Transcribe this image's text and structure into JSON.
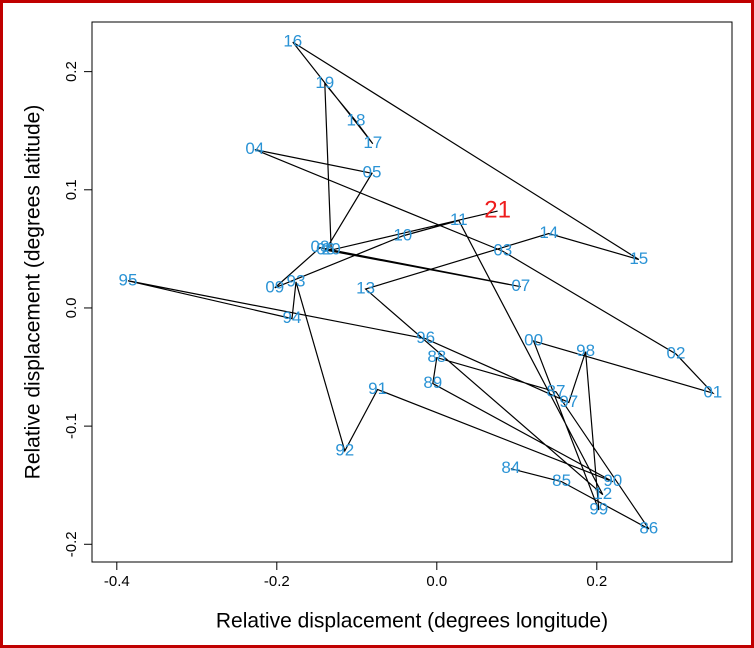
{
  "chart_data": {
    "type": "scatter",
    "x_label": "Relative displacement (degrees longitude)",
    "y_label": "Relative displacement (degrees latitude)",
    "xlim": [
      -0.431,
      0.369
    ],
    "ylim": [
      -0.215,
      0.242
    ],
    "xticks": [
      -0.4,
      -0.2,
      {
        "value": 0,
        "label": "0.0"
      },
      0.2
    ],
    "yticks": [
      -0.2,
      -0.1,
      {
        "value": 0,
        "label": "0.0"
      },
      0.1,
      0.2
    ],
    "line_color": "#000000",
    "highlight_label": "21",
    "highlight_color": "#ee1c1c",
    "series": [
      {
        "color": "#2a93d5",
        "labels": [
          "84",
          "85",
          "86",
          "87",
          "88",
          "89",
          "90",
          "91",
          "92",
          "93",
          "94",
          "95",
          "96",
          "97",
          "98",
          "99",
          "00",
          "01",
          "02",
          "03",
          "04",
          "05",
          "06",
          "07",
          "08",
          "09",
          "10",
          "11",
          "12",
          "13",
          "14",
          "15",
          "16",
          "17",
          "18",
          "19",
          "20",
          "21"
        ],
        "x": [
          0.0925,
          0.156,
          0.265,
          0.149,
          0.0,
          -0.005,
          0.22,
          -0.074,
          -0.115,
          -0.176,
          -0.181,
          -0.386,
          -0.014,
          0.165,
          0.186,
          0.2025,
          0.121,
          0.345,
          0.299,
          0.0825,
          -0.2275,
          -0.081,
          -0.139,
          0.105,
          -0.146,
          -0.2025,
          -0.0425,
          0.0275,
          0.2075,
          -0.089,
          0.14,
          0.2525,
          -0.18,
          -0.08,
          -0.101,
          -0.14,
          -0.132,
          0.076
        ],
        "y": [
          -0.136,
          -0.147,
          -0.187,
          -0.071,
          -0.042,
          -0.064,
          -0.147,
          -0.069,
          -0.121,
          0.022,
          -0.009,
          0.023,
          -0.026,
          -0.08,
          -0.037,
          -0.171,
          -0.028,
          -0.072,
          -0.039,
          0.048,
          0.134,
          0.114,
          0.049,
          0.018,
          0.051,
          0.017,
          0.061,
          0.074,
          -0.158,
          0.016,
          0.063,
          0.041,
          0.225,
          0.139,
          0.158,
          0.19,
          0.049,
          0.082
        ]
      }
    ]
  }
}
